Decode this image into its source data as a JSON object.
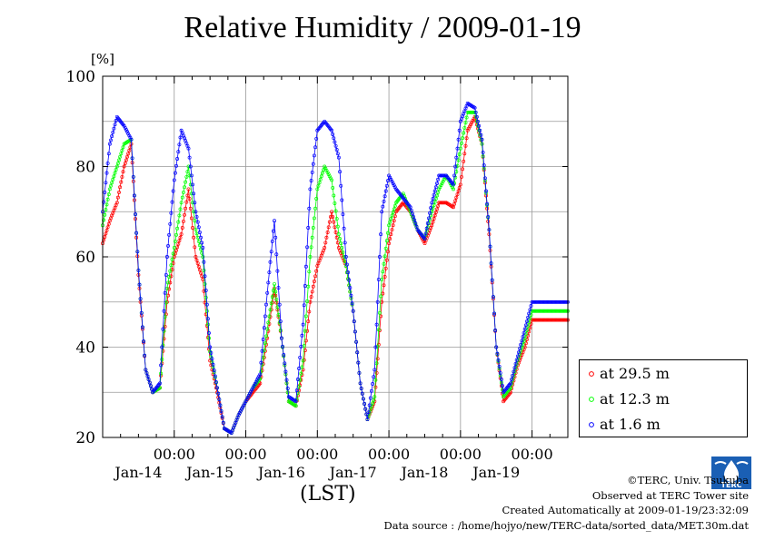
{
  "chart_data": {
    "type": "line",
    "title": "Relative Humidity / 2009-01-19",
    "ylabel": "[%]",
    "xlabel": "(LST)",
    "ylim": [
      20,
      100
    ],
    "yticks": [
      20,
      40,
      60,
      80,
      100
    ],
    "xlim": [
      0,
      6.5
    ],
    "x_tick_labels": [
      {
        "x": 1.0,
        "time": "00:00",
        "date": "Jan-14"
      },
      {
        "x": 2.0,
        "time": "00:00",
        "date": "Jan-15"
      },
      {
        "x": 3.0,
        "time": "00:00",
        "date": "Jan-16"
      },
      {
        "x": 4.0,
        "time": "00:00",
        "date": "Jan-17"
      },
      {
        "x": 5.0,
        "time": "00:00",
        "date": "Jan-18"
      },
      {
        "x": 6.0,
        "time": "00:00",
        "date": "Jan-19"
      }
    ],
    "grid": true,
    "legend_position": "bottom-right-outside",
    "x": [
      0.0,
      0.1,
      0.2,
      0.3,
      0.4,
      0.5,
      0.6,
      0.7,
      0.8,
      0.9,
      1.0,
      1.1,
      1.2,
      1.3,
      1.4,
      1.5,
      1.6,
      1.7,
      1.8,
      1.9,
      2.0,
      2.1,
      2.2,
      2.3,
      2.4,
      2.5,
      2.6,
      2.7,
      2.8,
      2.9,
      3.0,
      3.1,
      3.2,
      3.3,
      3.4,
      3.5,
      3.6,
      3.7,
      3.8,
      3.9,
      4.0,
      4.1,
      4.2,
      4.3,
      4.4,
      4.5,
      4.6,
      4.7,
      4.8,
      4.9,
      5.0,
      5.1,
      5.2,
      5.3,
      5.4,
      5.5,
      5.6,
      5.7,
      5.8,
      5.9,
      6.0,
      6.1,
      6.2,
      6.3,
      6.4,
      6.5
    ],
    "series": [
      {
        "name": "at 29.5 m",
        "color": "#ff0000",
        "values": [
          63,
          68,
          72,
          80,
          85,
          56,
          35,
          30,
          31,
          50,
          60,
          65,
          75,
          60,
          55,
          37,
          30,
          22,
          21,
          25,
          28,
          30,
          32,
          42,
          53,
          42,
          28,
          27,
          35,
          50,
          58,
          62,
          70,
          62,
          58,
          48,
          32,
          24,
          28,
          50,
          63,
          70,
          72,
          70,
          66,
          63,
          67,
          72,
          72,
          71,
          76,
          88,
          91,
          85,
          65,
          40,
          28,
          30,
          36,
          40,
          46,
          46,
          46,
          46,
          46,
          46
        ]
      },
      {
        "name": "at 12.3 m",
        "color": "#00ff00",
        "values": [
          67,
          75,
          80,
          85,
          86,
          57,
          35,
          30,
          31,
          53,
          62,
          72,
          80,
          66,
          60,
          39,
          31,
          22,
          21,
          25,
          28,
          31,
          33,
          44,
          54,
          42,
          28,
          27,
          37,
          60,
          75,
          80,
          77,
          65,
          58,
          48,
          32,
          24,
          29,
          55,
          67,
          72,
          74,
          70,
          66,
          64,
          70,
          75,
          78,
          75,
          84,
          92,
          92,
          85,
          66,
          40,
          29,
          31,
          37,
          42,
          48,
          48,
          48,
          48,
          48,
          48
        ]
      },
      {
        "name": "at 1.6 m",
        "color": "#0000ff",
        "values": [
          70,
          85,
          91,
          89,
          86,
          57,
          35,
          30,
          32,
          60,
          77,
          88,
          84,
          70,
          62,
          40,
          31,
          22,
          21,
          25,
          28,
          31,
          34,
          52,
          68,
          42,
          29,
          28,
          45,
          75,
          88,
          90,
          88,
          82,
          60,
          48,
          32,
          24,
          35,
          70,
          78,
          75,
          73,
          71,
          66,
          64,
          72,
          78,
          78,
          76,
          90,
          94,
          93,
          86,
          66,
          40,
          30,
          32,
          38,
          44,
          50,
          50,
          50,
          50,
          50,
          50
        ]
      }
    ]
  },
  "credits": {
    "copyright": "©TERC, Univ. Tsukuba",
    "observed": "Observed at TERC Tower site",
    "created": "Created Automatically at 2009-01-19/23:32:09",
    "source": "Data source : /home/hojyo/new/TERC-data/sorted_data/MET.30m.dat"
  },
  "logo": {
    "text": "TERC",
    "color": "#1a5fb4"
  }
}
